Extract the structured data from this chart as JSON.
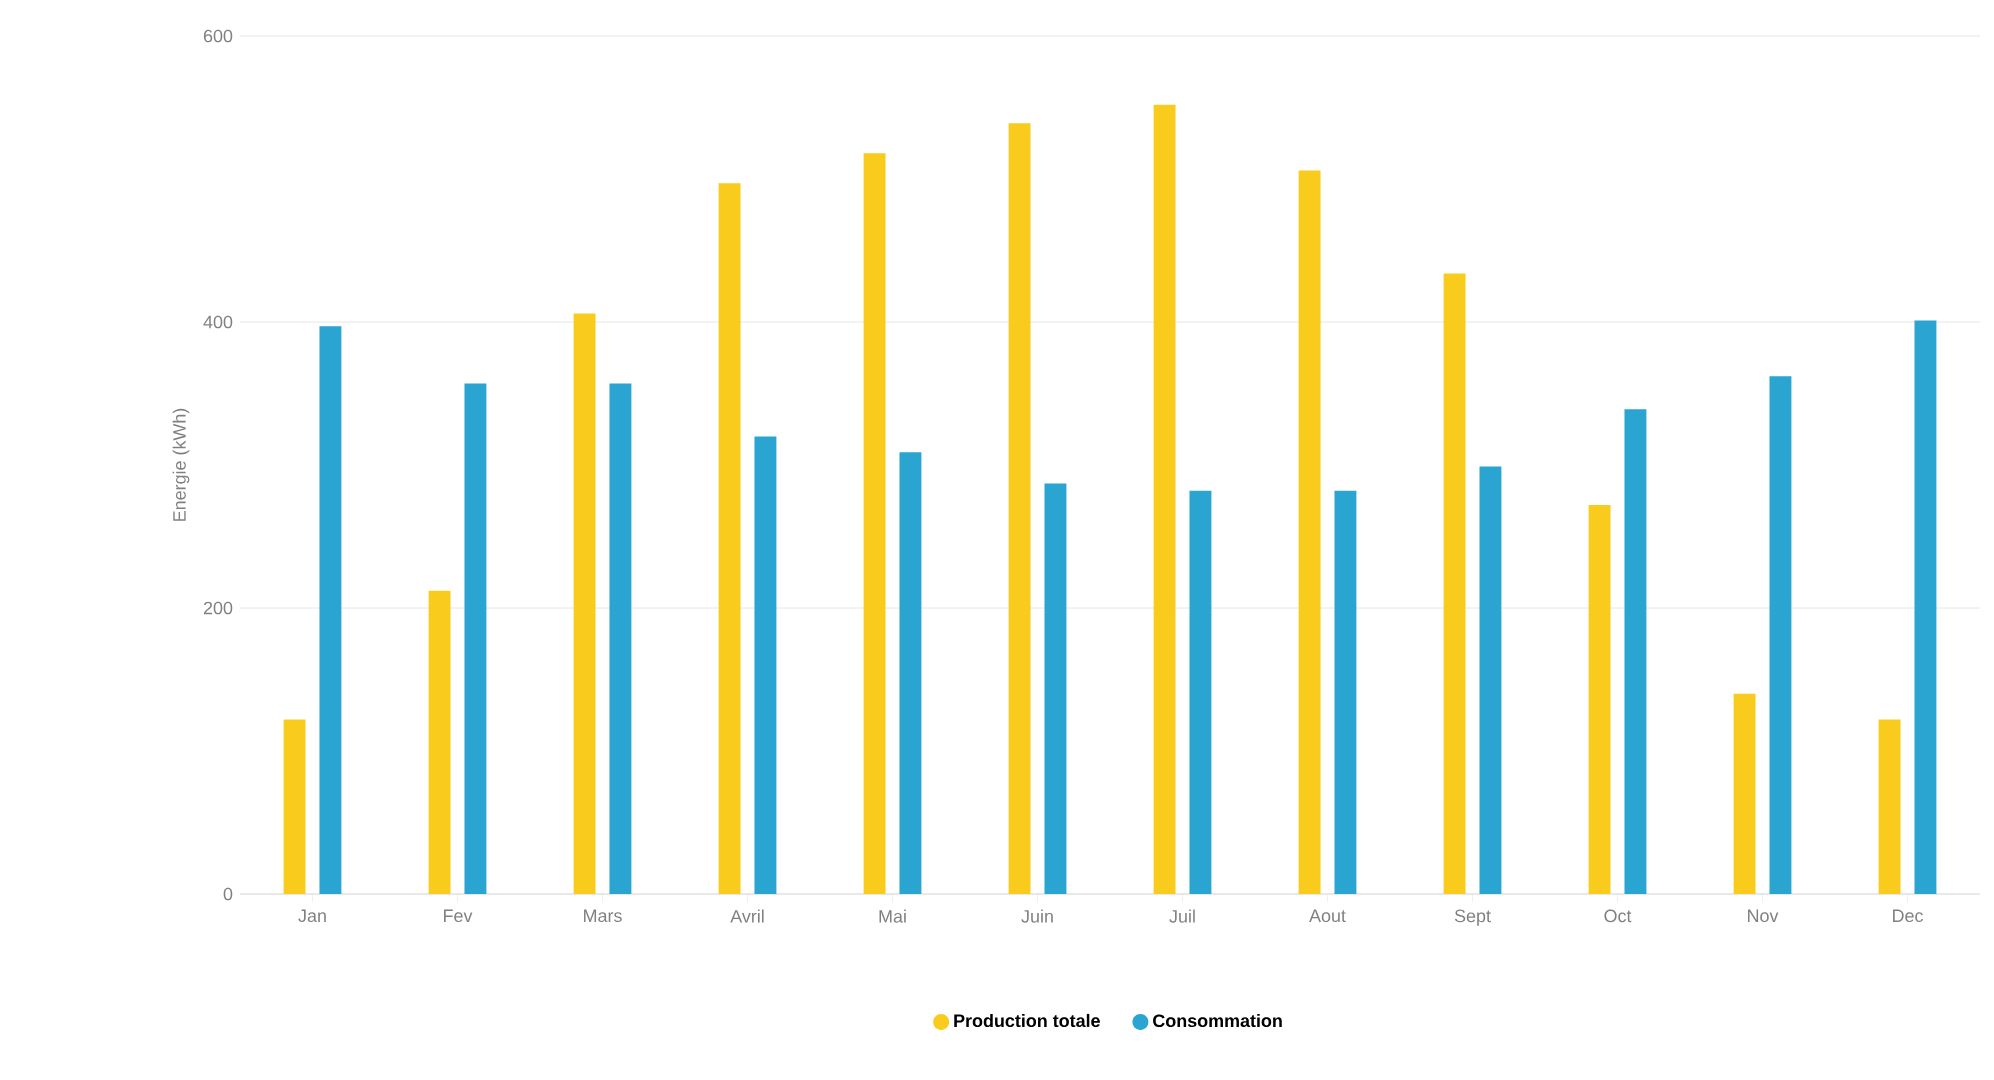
{
  "chart_data": {
    "type": "bar",
    "ylabel": "Energie (kWh)",
    "categories": [
      "Jan",
      "Fev",
      "Mars",
      "Avril",
      "Mai",
      "Juin",
      "Juil",
      "Aout",
      "Sept",
      "Oct",
      "Nov",
      "Dec"
    ],
    "series": [
      {
        "name": "Production totale",
        "color": "#f9cb1c",
        "values": [
          122,
          212,
          406,
          497,
          518,
          539,
          552,
          506,
          434,
          272,
          140,
          122
        ]
      },
      {
        "name": "Consommation",
        "color": "#2aa4d0",
        "values": [
          397,
          357,
          357,
          320,
          309,
          287,
          282,
          282,
          299,
          339,
          362,
          401
        ]
      }
    ],
    "ylim": [
      0,
      600
    ],
    "yticks": [
      0,
      200,
      400,
      600
    ],
    "grid": "y",
    "legend": "bottom"
  }
}
